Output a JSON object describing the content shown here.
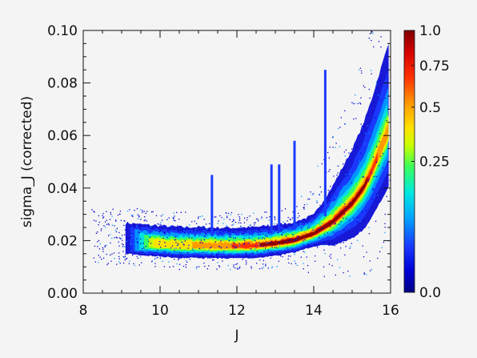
{
  "chart_data": {
    "type": "heatmap",
    "title": "",
    "xlabel": "J",
    "ylabel": "sigma_J (corrected)",
    "xlim": [
      8,
      16
    ],
    "ylim": [
      0.0,
      0.1
    ],
    "x_ticks": [
      8,
      10,
      12,
      14,
      16
    ],
    "x_tick_labels": [
      "8",
      "10",
      "12",
      "14",
      "16"
    ],
    "y_ticks": [
      0.0,
      0.02,
      0.04,
      0.06,
      0.08,
      0.1
    ],
    "y_tick_labels": [
      "0.00",
      "0.02",
      "0.04",
      "0.06",
      "0.08",
      "0.10"
    ],
    "colorbar": {
      "ticks": [
        0.0,
        0.25,
        0.5,
        0.75,
        1.0
      ],
      "tick_labels": [
        "0.0",
        "0.25",
        "0.5",
        "0.75",
        "1.0"
      ],
      "scale": "nonlinear (sqrt-like)"
    },
    "ridge_center": [
      [
        9.2,
        0.0195
      ],
      [
        9.5,
        0.019
      ],
      [
        10,
        0.0185
      ],
      [
        10.5,
        0.018
      ],
      [
        11,
        0.018
      ],
      [
        11.5,
        0.0178
      ],
      [
        12,
        0.0178
      ],
      [
        12.5,
        0.018
      ],
      [
        13,
        0.0188
      ],
      [
        13.5,
        0.02
      ],
      [
        14,
        0.0225
      ],
      [
        14.5,
        0.027
      ],
      [
        15,
        0.034
      ],
      [
        15.3,
        0.04
      ],
      [
        15.5,
        0.046
      ],
      [
        15.7,
        0.053
      ]
    ],
    "peak_density_region": {
      "x": [
        12,
        15.5
      ],
      "y": [
        0.017,
        0.055
      ]
    },
    "vertical_streaks": [
      {
        "x": 11.35,
        "y_top": 0.045
      },
      {
        "x": 12.9,
        "y_top": 0.049
      },
      {
        "x": 13.1,
        "y_top": 0.049
      },
      {
        "x": 13.5,
        "y_top": 0.058
      },
      {
        "x": 14.3,
        "y_top": 0.085
      }
    ],
    "colors": {
      "background": "#f4f4f4",
      "axis": "#111111",
      "colormap": [
        "#000083",
        "#0000d4",
        "#1a3cff",
        "#00a0ff",
        "#00e8e0",
        "#3cff5a",
        "#c8ff00",
        "#ffe000",
        "#ff9a00",
        "#ff3200",
        "#d40000",
        "#800000"
      ]
    }
  }
}
